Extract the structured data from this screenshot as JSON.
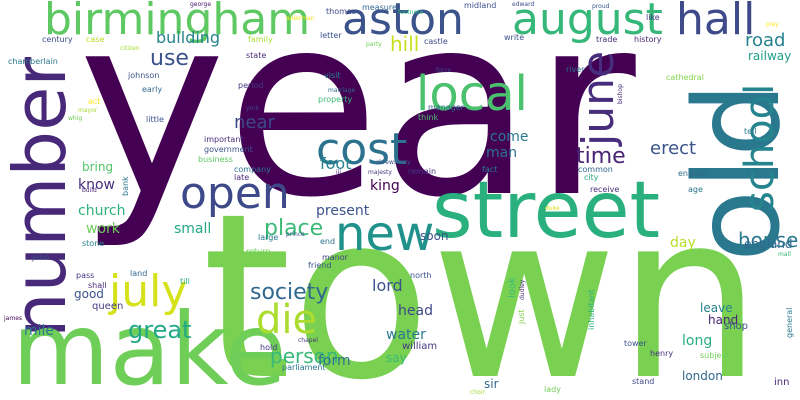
{
  "cloud": {
    "words": [
      {
        "text": "year",
        "color": "#440154",
        "vertical": false
      },
      {
        "text": "town",
        "color": "#7ad151",
        "vertical": false
      },
      {
        "text": "number",
        "color": "#482878",
        "vertical": true
      },
      {
        "text": "street",
        "color": "#2ab07f",
        "vertical": false
      },
      {
        "text": "make",
        "color": "#6ece58",
        "vertical": false
      },
      {
        "text": "old",
        "color": "#2a788e",
        "vertical": true
      },
      {
        "text": "birmingham",
        "color": "#5ec962",
        "vertical": false
      },
      {
        "text": "aston",
        "color": "#3b528b",
        "vertical": false
      },
      {
        "text": "august",
        "color": "#35b779",
        "vertical": false
      },
      {
        "text": "hall",
        "color": "#3e4a89",
        "vertical": false
      },
      {
        "text": "new",
        "color": "#21918c",
        "vertical": false
      },
      {
        "text": "open",
        "color": "#3e4989",
        "vertical": false
      },
      {
        "text": "cost",
        "color": "#2c728e",
        "vertical": false
      },
      {
        "text": "local",
        "color": "#4ac16d",
        "vertical": false
      },
      {
        "text": "june",
        "color": "#472d7b",
        "vertical": true
      },
      {
        "text": "school",
        "color": "#25848e",
        "vertical": true
      },
      {
        "text": "july",
        "color": "#d5e21a",
        "vertical": false
      },
      {
        "text": "die",
        "color": "#addc30",
        "vertical": false
      },
      {
        "text": "great",
        "color": "#22a884",
        "vertical": false
      },
      {
        "text": "society",
        "color": "#31688e",
        "vertical": false
      },
      {
        "text": "time",
        "color": "#482475",
        "vertical": false
      },
      {
        "text": "use",
        "color": "#3b528b",
        "vertical": false
      },
      {
        "text": "building",
        "color": "#26828e",
        "vertical": false
      },
      {
        "text": "hill",
        "color": "#c8e020",
        "vertical": false
      },
      {
        "text": "road",
        "color": "#26828e",
        "vertical": false
      },
      {
        "text": "railway",
        "color": "#1f9e89",
        "vertical": false
      },
      {
        "text": "place",
        "color": "#3aba76",
        "vertical": false
      },
      {
        "text": "person",
        "color": "#38b977",
        "vertical": false
      },
      {
        "text": "house",
        "color": "#2a788e",
        "vertical": false
      },
      {
        "text": "near",
        "color": "#3e4989",
        "vertical": false
      },
      {
        "text": "foot",
        "color": "#25848e",
        "vertical": false
      },
      {
        "text": "come",
        "color": "#2a788e",
        "vertical": false
      },
      {
        "text": "man",
        "color": "#2c728e",
        "vertical": false
      },
      {
        "text": "erect",
        "color": "#3b528b",
        "vertical": false
      },
      {
        "text": "church",
        "color": "#2db27d",
        "vertical": false
      },
      {
        "text": "know",
        "color": "#472f7d",
        "vertical": false
      },
      {
        "text": "bring",
        "color": "#54c568",
        "vertical": false
      },
      {
        "text": "work",
        "color": "#6ece58",
        "vertical": false
      },
      {
        "text": "small",
        "color": "#22a884",
        "vertical": false
      },
      {
        "text": "present",
        "color": "#3b528b",
        "vertical": false
      },
      {
        "text": "king",
        "color": "#440154",
        "vertical": false
      },
      {
        "text": "soon",
        "color": "#3b528b",
        "vertical": false
      },
      {
        "text": "day",
        "color": "#b8de29",
        "vertical": false
      },
      {
        "text": "england",
        "color": "#31688e",
        "vertical": false
      },
      {
        "text": "lord",
        "color": "#3b528b",
        "vertical": false
      },
      {
        "text": "head",
        "color": "#3e4989",
        "vertical": false
      },
      {
        "text": "water",
        "color": "#2a788e",
        "vertical": false
      },
      {
        "text": "form",
        "color": "#2c728e",
        "vertical": false
      },
      {
        "text": "say",
        "color": "#3aba76",
        "vertical": false
      },
      {
        "text": "william",
        "color": "#443983",
        "vertical": false
      },
      {
        "text": "long",
        "color": "#27ad81",
        "vertical": false
      },
      {
        "text": "leave",
        "color": "#26828e",
        "vertical": false
      },
      {
        "text": "hand",
        "color": "#482475",
        "vertical": false
      },
      {
        "text": "shop",
        "color": "#3b528b",
        "vertical": false
      },
      {
        "text": "london",
        "color": "#31688e",
        "vertical": false
      },
      {
        "text": "mile",
        "color": "#2c728e",
        "vertical": false
      },
      {
        "text": "good",
        "color": "#3b528b",
        "vertical": false
      },
      {
        "text": "queen",
        "color": "#443983",
        "vertical": false
      },
      {
        "text": "sir",
        "color": "#31688e",
        "vertical": false
      },
      {
        "text": "lady",
        "color": "#73d056",
        "vertical": false
      },
      {
        "text": "henry",
        "color": "#46327e",
        "vertical": false
      },
      {
        "text": "stand",
        "color": "#3e4989",
        "vertical": false
      },
      {
        "text": "inn",
        "color": "#482878",
        "vertical": false
      },
      {
        "text": "general",
        "color": "#2a788e",
        "vertical": true
      },
      {
        "text": "subject",
        "color": "#6ece58",
        "vertical": false
      },
      {
        "text": "tower",
        "color": "#3b528b",
        "vertical": false
      },
      {
        "text": "manager",
        "color": "#31688e",
        "vertical": false
      },
      {
        "text": "think",
        "color": "#4ac16d",
        "vertical": false
      },
      {
        "text": "remain",
        "color": "#443983",
        "vertical": false
      },
      {
        "text": "fact",
        "color": "#25848e",
        "vertical": false
      },
      {
        "text": "receive",
        "color": "#472f7d",
        "vertical": false
      },
      {
        "text": "english",
        "color": "#31688e",
        "vertical": false
      },
      {
        "text": "age",
        "color": "#2a788e",
        "vertical": false
      },
      {
        "text": "common",
        "color": "#31688e",
        "vertical": false
      },
      {
        "text": "city",
        "color": "#27ad81",
        "vertical": false
      },
      {
        "text": "manor",
        "color": "#433e85",
        "vertical": false
      },
      {
        "text": "friend",
        "color": "#3b528b",
        "vertical": false
      },
      {
        "text": "end",
        "color": "#2c728e",
        "vertical": false
      },
      {
        "text": "pass",
        "color": "#443983",
        "vertical": false
      },
      {
        "text": "shall",
        "color": "#472d7b",
        "vertical": false
      },
      {
        "text": "land",
        "color": "#31688e",
        "vertical": false
      },
      {
        "text": "till",
        "color": "#2db27d",
        "vertical": false
      },
      {
        "text": "john",
        "color": "#3b528b",
        "vertical": false
      },
      {
        "text": "stone",
        "color": "#25848e",
        "vertical": false
      },
      {
        "text": "return",
        "color": "#73d056",
        "vertical": false
      },
      {
        "text": "large",
        "color": "#2a788e",
        "vertical": false
      },
      {
        "text": "late",
        "color": "#482878",
        "vertical": false
      },
      {
        "text": "company",
        "color": "#2c728e",
        "vertical": false
      },
      {
        "text": "business",
        "color": "#5ec962",
        "vertical": false
      },
      {
        "text": "government",
        "color": "#3b528b",
        "vertical": false
      },
      {
        "text": "important",
        "color": "#472d7b",
        "vertical": false
      },
      {
        "text": "little",
        "color": "#3b528b",
        "vertical": false
      },
      {
        "text": "act",
        "color": "#fde725",
        "vertical": false
      },
      {
        "text": "early",
        "color": "#31688e",
        "vertical": false
      },
      {
        "text": "johnson",
        "color": "#3b528b",
        "vertical": false
      },
      {
        "text": "period",
        "color": "#443983",
        "vertical": false
      },
      {
        "text": "property",
        "color": "#3aba76",
        "vertical": false
      },
      {
        "text": "visit",
        "color": "#25848e",
        "vertical": false
      },
      {
        "text": "chamberlain",
        "color": "#2a788e",
        "vertical": false
      },
      {
        "text": "century",
        "color": "#3e4989",
        "vertical": false
      },
      {
        "text": "family",
        "color": "#addc30",
        "vertical": false
      },
      {
        "text": "state",
        "color": "#472d7b",
        "vertical": false
      },
      {
        "text": "letter",
        "color": "#3b528b",
        "vertical": false
      },
      {
        "text": "thomas",
        "color": "#3e4989",
        "vertical": false
      },
      {
        "text": "measure",
        "color": "#31688e",
        "vertical": false
      },
      {
        "text": "midland",
        "color": "#3b528b",
        "vertical": false
      },
      {
        "text": "write",
        "color": "#3b528b",
        "vertical": false
      },
      {
        "text": "trade",
        "color": "#472d7b",
        "vertical": false
      },
      {
        "text": "history",
        "color": "#482878",
        "vertical": false
      },
      {
        "text": "like",
        "color": "#443983",
        "vertical": false
      },
      {
        "text": "river",
        "color": "#31688e",
        "vertical": false
      },
      {
        "text": "lane",
        "color": "#2a788e",
        "vertical": false
      },
      {
        "text": "tell",
        "color": "#2a788e",
        "vertical": false
      },
      {
        "text": "bank",
        "color": "#2a788e",
        "vertical": true
      },
      {
        "text": "parliament",
        "color": "#2a788e",
        "vertical": false
      },
      {
        "text": "hold",
        "color": "#443983",
        "vertical": false
      },
      {
        "text": "look",
        "color": "#3aba76",
        "vertical": true
      },
      {
        "text": "just",
        "color": "#84d44b",
        "vertical": true
      },
      {
        "text": "inhabitant",
        "color": "#2db27d",
        "vertical": true
      },
      {
        "text": "north",
        "color": "#3b528b",
        "vertical": false
      },
      {
        "text": "case",
        "color": "#b8de29",
        "vertical": false
      },
      {
        "text": "castle",
        "color": "#3e4989",
        "vertical": false
      },
      {
        "text": "cathedral",
        "color": "#84d44b",
        "vertical": false
      },
      {
        "text": "george",
        "color": "#481a6c",
        "vertical": false
      },
      {
        "text": "edward",
        "color": "#3e4989",
        "vertical": false
      },
      {
        "text": "citizen",
        "color": "#a5db36",
        "vertical": false
      },
      {
        "text": "party",
        "color": "#6ece58",
        "vertical": false
      },
      {
        "text": "mayor",
        "color": "#a5db36",
        "vertical": false
      },
      {
        "text": "whig",
        "color": "#6ece58",
        "vertical": false
      },
      {
        "text": "york",
        "color": "#3e4989",
        "vertical": false
      },
      {
        "text": "marriage",
        "color": "#31688e",
        "vertical": false
      },
      {
        "text": "majesty",
        "color": "#443983",
        "vertical": false
      },
      {
        "text": "shrewsbury",
        "color": "#3b528b",
        "vertical": false
      },
      {
        "text": "iii",
        "color": "#482475",
        "vertical": false
      },
      {
        "text": "prince",
        "color": "#3b528b",
        "vertical": false
      },
      {
        "text": "chapel",
        "color": "#46327e",
        "vertical": false
      },
      {
        "text": "choir",
        "color": "#a5db36",
        "vertical": false
      },
      {
        "text": "bishop",
        "color": "#472d7b",
        "vertical": true
      },
      {
        "text": "dudley",
        "color": "#482878",
        "vertical": true
      },
      {
        "text": "footnote",
        "color": "#2db27d",
        "vertical": false
      },
      {
        "text": "build",
        "color": "#482878",
        "vertical": false
      },
      {
        "text": "alderman",
        "color": "#f1e51d",
        "vertical": false
      },
      {
        "text": "mall",
        "color": "#35b779",
        "vertical": false
      },
      {
        "text": "james",
        "color": "#440154",
        "vertical": false
      },
      {
        "text": "play",
        "color": "#fde725",
        "vertical": false
      },
      {
        "text": "force",
        "color": "#3e4989",
        "vertical": false
      },
      {
        "text": "proud",
        "color": "#3b528b",
        "vertical": false
      },
      {
        "text": "duke",
        "color": "#d5e21a",
        "vertical": false
      }
    ]
  }
}
